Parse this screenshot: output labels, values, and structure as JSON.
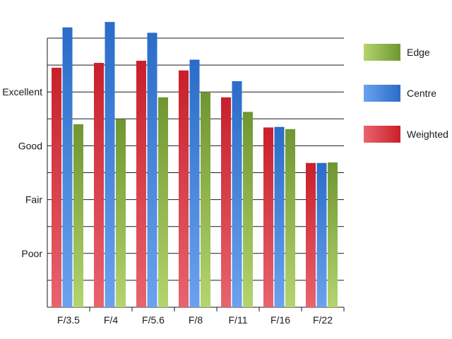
{
  "chart_data": {
    "type": "bar",
    "title": "",
    "xlabel": "",
    "ylabel": "",
    "categories": [
      "F/3.5",
      "F/4",
      "F/5.6",
      "F/8",
      "F/11",
      "F/16",
      "F/22"
    ],
    "y_tick_labels": [
      {
        "value": 1,
        "label": "Poor"
      },
      {
        "value": 2,
        "label": "Fair"
      },
      {
        "value": 3,
        "label": "Good"
      },
      {
        "value": 4,
        "label": "Excellent"
      }
    ],
    "ylim": [
      0,
      5
    ],
    "grid": true,
    "legend_position": "right",
    "series": [
      {
        "name": "Weighted",
        "color": "#c8202a",
        "light": "#e8646e",
        "values": [
          4.45,
          4.54,
          4.58,
          4.4,
          3.9,
          3.34,
          2.68
        ]
      },
      {
        "name": "Centre",
        "color": "#2a6cc8",
        "light": "#6aa2ee",
        "values": [
          5.2,
          5.3,
          5.1,
          4.6,
          4.2,
          3.35,
          2.68
        ]
      },
      {
        "name": "Edge",
        "color": "#6f9630",
        "light": "#b4d46e",
        "values": [
          3.4,
          3.5,
          3.9,
          4.0,
          3.63,
          3.31,
          2.69
        ]
      }
    ],
    "legend": [
      {
        "name": "Edge",
        "color": "#6f9630",
        "light": "#b4d46e"
      },
      {
        "name": "Centre",
        "color": "#2a6cc8",
        "light": "#6aa2ee"
      },
      {
        "name": "Weighted",
        "color": "#c8202a",
        "light": "#e8646e"
      }
    ]
  }
}
